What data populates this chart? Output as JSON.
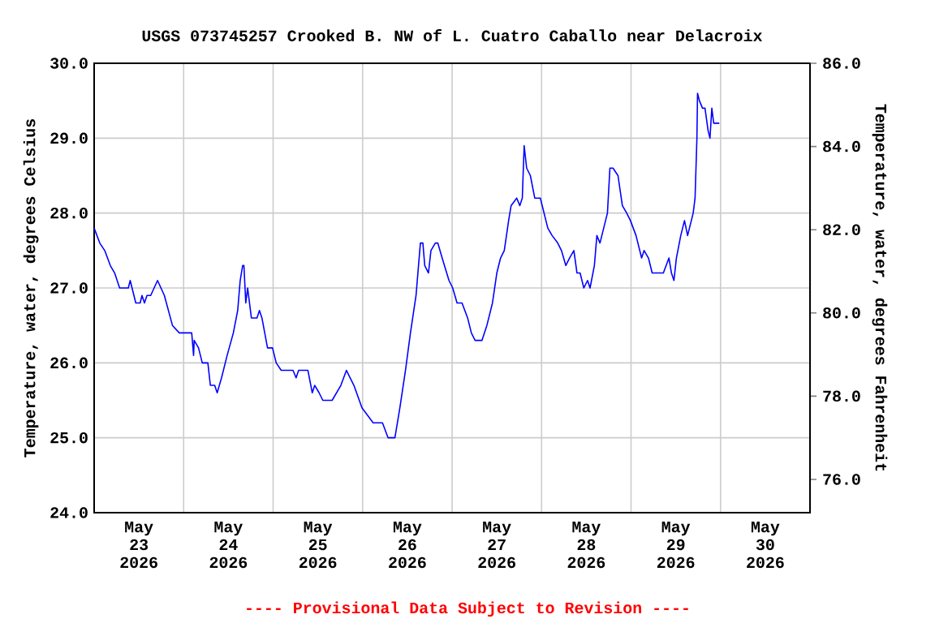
{
  "chart_data": {
    "type": "line",
    "title": "USGS 073745257 Crooked B. NW of L. Cuatro Caballo near Delacroix",
    "ylabel": "Temperature, water, degrees Celsius",
    "y2label": "Temperature, water, degrees Fahrenheit",
    "annotations": [
      "---- Provisional Data Subject to Revision ----"
    ],
    "x": [
      "2026-05-23T00:00",
      "2026-05-23T01:30",
      "2026-05-23T02:50",
      "2026-05-23T04:20",
      "2026-05-23T05:30",
      "2026-05-23T06:50",
      "2026-05-23T09:10",
      "2026-05-23T09:40",
      "2026-05-23T11:10",
      "2026-05-23T12:20",
      "2026-05-23T12:50",
      "2026-05-23T13:30",
      "2026-05-23T14:10",
      "2026-05-23T15:10",
      "2026-05-23T17:00",
      "2026-05-23T18:50",
      "2026-05-23T21:00",
      "2026-05-23T22:50",
      "2026-05-24T02:10",
      "2026-05-24T02:40",
      "2026-05-24T02:50",
      "2026-05-24T04:00",
      "2026-05-24T05:00",
      "2026-05-24T06:30",
      "2026-05-24T07:10",
      "2026-05-24T08:20",
      "2026-05-24T09:00",
      "2026-05-24T10:10",
      "2026-05-24T11:40",
      "2026-05-24T13:20",
      "2026-05-24T14:30",
      "2026-05-24T15:10",
      "2026-05-24T15:50",
      "2026-05-24T16:10",
      "2026-05-24T16:40",
      "2026-05-24T17:10",
      "2026-05-24T17:40",
      "2026-05-24T18:10",
      "2026-05-24T19:40",
      "2026-05-24T20:20",
      "2026-05-24T21:00",
      "2026-05-24T22:30",
      "2026-05-24T23:50",
      "2026-05-25T00:50",
      "2026-05-25T02:10",
      "2026-05-25T05:20",
      "2026-05-25T06:10",
      "2026-05-25T06:50",
      "2026-05-25T09:20",
      "2026-05-25T10:30",
      "2026-05-25T11:10",
      "2026-05-25T12:20",
      "2026-05-25T13:20",
      "2026-05-25T15:50",
      "2026-05-25T18:10",
      "2026-05-25T19:40",
      "2026-05-25T21:40",
      "2026-05-25T23:50",
      "2026-05-26T01:20",
      "2026-05-26T02:50",
      "2026-05-26T05:20",
      "2026-05-26T06:50",
      "2026-05-26T08:40",
      "2026-05-26T10:00",
      "2026-05-26T11:30",
      "2026-05-26T12:50",
      "2026-05-26T14:20",
      "2026-05-26T15:30",
      "2026-05-26T16:10",
      "2026-05-26T16:40",
      "2026-05-26T17:40",
      "2026-05-26T18:20",
      "2026-05-26T19:30",
      "2026-05-26T20:10",
      "2026-05-26T21:20",
      "2026-05-26T23:10",
      "2026-05-27T00:10",
      "2026-05-27T01:20",
      "2026-05-27T02:40",
      "2026-05-27T04:10",
      "2026-05-27T05:10",
      "2026-05-27T06:10",
      "2026-05-27T08:00",
      "2026-05-27T09:20",
      "2026-05-27T10:50",
      "2026-05-27T12:00",
      "2026-05-27T13:00",
      "2026-05-27T14:00",
      "2026-05-27T15:10",
      "2026-05-27T15:50",
      "2026-05-27T17:20",
      "2026-05-27T18:10",
      "2026-05-27T18:50",
      "2026-05-27T19:20",
      "2026-05-27T20:00",
      "2026-05-27T21:00",
      "2026-05-27T22:10",
      "2026-05-27T23:40",
      "2026-05-28T00:40",
      "2026-05-28T01:40",
      "2026-05-28T02:50",
      "2026-05-28T04:20",
      "2026-05-28T05:20",
      "2026-05-28T06:30",
      "2026-05-28T07:30",
      "2026-05-28T08:40",
      "2026-05-28T09:30",
      "2026-05-28T10:20",
      "2026-05-28T11:20",
      "2026-05-28T12:20",
      "2026-05-28T13:00",
      "2026-05-28T14:10",
      "2026-05-28T14:50",
      "2026-05-28T15:40",
      "2026-05-28T16:40",
      "2026-05-28T17:40",
      "2026-05-28T18:20",
      "2026-05-28T19:10",
      "2026-05-28T20:30",
      "2026-05-28T21:40",
      "2026-05-28T22:50",
      "2026-05-28T23:50",
      "2026-05-29T01:20",
      "2026-05-29T02:50",
      "2026-05-29T03:30",
      "2026-05-29T04:40",
      "2026-05-29T05:40",
      "2026-05-29T08:40",
      "2026-05-29T10:10",
      "2026-05-29T10:50",
      "2026-05-29T11:30",
      "2026-05-29T12:10",
      "2026-05-29T13:20",
      "2026-05-29T14:20",
      "2026-05-29T15:10",
      "2026-05-29T16:40",
      "2026-05-29T17:10",
      "2026-05-29T17:40",
      "2026-05-29T17:50",
      "2026-05-29T18:20",
      "2026-05-29T19:10",
      "2026-05-29T19:50",
      "2026-05-29T20:40",
      "2026-05-29T21:10",
      "2026-05-29T21:40",
      "2026-05-29T22:10",
      "2026-05-29T23:40"
    ],
    "series": [
      {
        "color": "#0000ff",
        "values": [
          27.8,
          27.6,
          27.5,
          27.3,
          27.2,
          27.0,
          27.0,
          27.1,
          26.8,
          26.8,
          26.9,
          26.8,
          26.9,
          26.9,
          27.1,
          26.9,
          26.5,
          26.4,
          26.4,
          26.1,
          26.3,
          26.2,
          26.0,
          26.0,
          25.7,
          25.7,
          25.6,
          25.8,
          26.1,
          26.4,
          26.7,
          27.1,
          27.3,
          27.3,
          26.8,
          27.0,
          26.8,
          26.6,
          26.6,
          26.7,
          26.6,
          26.2,
          26.2,
          26.0,
          25.9,
          25.9,
          25.8,
          25.9,
          25.9,
          25.6,
          25.7,
          25.6,
          25.5,
          25.5,
          25.7,
          25.9,
          25.7,
          25.4,
          25.3,
          25.2,
          25.2,
          25.0,
          25.0,
          25.4,
          25.9,
          26.4,
          26.9,
          27.6,
          27.6,
          27.3,
          27.2,
          27.5,
          27.6,
          27.6,
          27.4,
          27.1,
          27.0,
          26.8,
          26.8,
          26.6,
          26.4,
          26.3,
          26.3,
          26.5,
          26.8,
          27.2,
          27.4,
          27.5,
          27.9,
          28.1,
          28.2,
          28.1,
          28.2,
          28.9,
          28.6,
          28.5,
          28.2,
          28.2,
          28.0,
          27.8,
          27.7,
          27.6,
          27.5,
          27.3,
          27.4,
          27.5,
          27.2,
          27.2,
          27.0,
          27.1,
          27.0,
          27.3,
          27.7,
          27.6,
          27.8,
          28.0,
          28.6,
          28.6,
          28.5,
          28.1,
          28.0,
          27.9,
          27.7,
          27.4,
          27.5,
          27.4,
          27.2,
          27.2,
          27.4,
          27.2,
          27.1,
          27.4,
          27.7,
          27.9,
          27.7,
          28.0,
          28.2,
          29.0,
          29.6,
          29.5,
          29.4,
          29.4,
          29.1,
          29.0,
          29.4,
          29.2,
          29.2
        ]
      }
    ],
    "xlim": [
      "2026-05-23T00:00",
      "2026-05-31T00:00"
    ],
    "xticks": [
      {
        "value": "2026-05-23T12:00",
        "label": "May 23 2026"
      },
      {
        "value": "2026-05-24T12:00",
        "label": "May 24 2026"
      },
      {
        "value": "2026-05-25T12:00",
        "label": "May 25 2026"
      },
      {
        "value": "2026-05-26T12:00",
        "label": "May 26 2026"
      },
      {
        "value": "2026-05-27T12:00",
        "label": "May 27 2026"
      },
      {
        "value": "2026-05-28T12:00",
        "label": "May 28 2026"
      },
      {
        "value": "2026-05-29T12:00",
        "label": "May 29 2026"
      },
      {
        "value": "2026-05-30T12:00",
        "label": "May 30 2026"
      },
      {
        "value": "2026-05-24T00:00",
        "label": null
      },
      {
        "value": "2026-05-25T00:00",
        "label": null
      },
      {
        "value": "2026-05-26T00:00",
        "label": null
      },
      {
        "value": "2026-05-27T00:00",
        "label": null
      },
      {
        "value": "2026-05-28T00:00",
        "label": null
      },
      {
        "value": "2026-05-29T00:00",
        "label": null
      },
      {
        "value": "2026-05-30T00:00",
        "label": null
      }
    ],
    "ylim": [
      24,
      30
    ],
    "yticks": [
      {
        "value": 24,
        "label": "24.0"
      },
      {
        "value": 25,
        "label": "25.0"
      },
      {
        "value": 26,
        "label": "26.0"
      },
      {
        "value": 27,
        "label": "27.0"
      },
      {
        "value": 28,
        "label": "28.0"
      },
      {
        "value": 29,
        "label": "29.0"
      },
      {
        "value": 30,
        "label": "30.0"
      }
    ],
    "y2lim": [
      75.2,
      86
    ],
    "y2ticks": [
      {
        "value": 76,
        "label": "76.0"
      },
      {
        "value": 78,
        "label": "78.0"
      },
      {
        "value": 80,
        "label": "80.0"
      },
      {
        "value": 82,
        "label": "82.0"
      },
      {
        "value": 84,
        "label": "84.0"
      },
      {
        "value": 86,
        "label": "86.0"
      }
    ],
    "grid": true
  }
}
